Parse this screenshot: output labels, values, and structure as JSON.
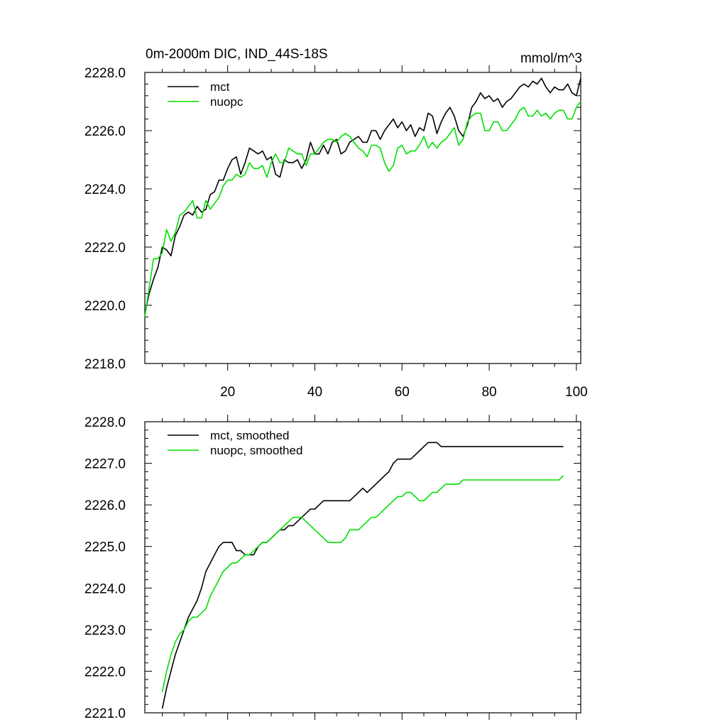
{
  "colors": {
    "mct": "#000000",
    "nuopc": "#00e000"
  },
  "chart_data": [
    {
      "type": "line",
      "title": "0m-2000m DIC, IND_44S-18S",
      "units": "mmol/m^3",
      "xlim": [
        1,
        101
      ],
      "ylim": [
        2218.0,
        2228.0
      ],
      "x_ticks": [
        20,
        40,
        60,
        80,
        100
      ],
      "x_tick_labels": [
        "20",
        "40",
        "60",
        "80",
        "100"
      ],
      "y_ticks": [
        2218.0,
        2220.0,
        2222.0,
        2224.0,
        2226.0,
        2228.0
      ],
      "y_tick_labels": [
        "2218.0",
        "2220.0",
        "2222.0",
        "2224.0",
        "2226.0",
        "2228.0"
      ],
      "legend_position": "top-left",
      "x": [
        1,
        2,
        3,
        4,
        5,
        6,
        7,
        8,
        9,
        10,
        11,
        12,
        13,
        14,
        15,
        16,
        17,
        18,
        19,
        20,
        21,
        22,
        23,
        24,
        25,
        26,
        27,
        28,
        29,
        30,
        31,
        32,
        33,
        34,
        35,
        36,
        37,
        38,
        39,
        40,
        41,
        42,
        43,
        44,
        45,
        46,
        47,
        48,
        49,
        50,
        51,
        52,
        53,
        54,
        55,
        56,
        57,
        58,
        59,
        60,
        61,
        62,
        63,
        64,
        65,
        66,
        67,
        68,
        69,
        70,
        71,
        72,
        73,
        74,
        75,
        76,
        77,
        78,
        79,
        80,
        81,
        82,
        83,
        84,
        85,
        86,
        87,
        88,
        89,
        90,
        91,
        92,
        93,
        94,
        95,
        96,
        97,
        98,
        99,
        100,
        101
      ],
      "series": [
        {
          "name": "mct",
          "values": [
            2219.7,
            2220.4,
            2220.9,
            2221.3,
            2222.0,
            2221.9,
            2221.7,
            2222.4,
            2222.7,
            2223.1,
            2223.2,
            2223.1,
            2223.4,
            2223.2,
            2223.3,
            2223.8,
            2223.9,
            2224.3,
            2224.3,
            2224.7,
            2225.0,
            2225.1,
            2224.5,
            2224.9,
            2225.4,
            2225.3,
            2225.2,
            2225.3,
            2225.0,
            2225.1,
            2224.5,
            2224.4,
            2225.0,
            2224.9,
            2224.9,
            2225.0,
            2224.7,
            2225.0,
            2225.6,
            2225.2,
            2225.2,
            2225.5,
            2225.2,
            2225.6,
            2225.7,
            2225.2,
            2225.3,
            2225.6,
            2225.7,
            2225.8,
            2225.6,
            2225.6,
            2226.0,
            2226.0,
            2225.7,
            2226.0,
            2226.2,
            2226.4,
            2226.1,
            2226.3,
            2226.0,
            2226.2,
            2225.8,
            2226.1,
            2226.0,
            2226.6,
            2226.5,
            2225.9,
            2226.3,
            2226.6,
            2226.8,
            2226.5,
            2226.0,
            2225.8,
            2226.2,
            2226.8,
            2227.0,
            2227.3,
            2227.1,
            2227.2,
            2227.0,
            2227.1,
            2226.8,
            2227.0,
            2227.1,
            2227.3,
            2227.5,
            2227.6,
            2227.5,
            2227.7,
            2227.6,
            2227.8,
            2227.5,
            2227.3,
            2227.5,
            2227.4,
            2227.4,
            2227.6,
            2227.3,
            2227.2,
            2227.8
          ]
        },
        {
          "name": "nuopc",
          "values": [
            2219.6,
            2220.6,
            2221.6,
            2221.6,
            2221.8,
            2222.6,
            2222.2,
            2222.5,
            2223.1,
            2223.2,
            2223.4,
            2223.6,
            2223.0,
            2223.0,
            2223.6,
            2223.3,
            2223.5,
            2223.7,
            2224.1,
            2224.3,
            2224.3,
            2224.5,
            2224.4,
            2224.5,
            2224.9,
            2224.7,
            2224.7,
            2224.8,
            2224.4,
            2224.9,
            2225.2,
            2224.9,
            2224.9,
            2225.4,
            2225.3,
            2225.2,
            2225.2,
            2224.8,
            2225.2,
            2225.2,
            2225.4,
            2225.6,
            2225.7,
            2225.7,
            2225.6,
            2225.8,
            2225.9,
            2225.8,
            2225.6,
            2225.4,
            2225.3,
            2225.1,
            2225.5,
            2225.5,
            2225.4,
            2224.9,
            2224.6,
            2224.8,
            2225.4,
            2225.5,
            2225.2,
            2225.3,
            2225.3,
            2225.5,
            2225.8,
            2225.4,
            2225.6,
            2225.4,
            2225.6,
            2225.7,
            2225.9,
            2226.1,
            2225.5,
            2225.7,
            2226.3,
            2226.5,
            2226.6,
            2226.6,
            2226.0,
            2226.0,
            2226.3,
            2226.3,
            2226.0,
            2226.0,
            2226.2,
            2226.4,
            2226.7,
            2226.8,
            2226.5,
            2226.5,
            2226.7,
            2226.5,
            2226.6,
            2226.4,
            2226.6,
            2226.7,
            2226.7,
            2226.4,
            2226.4,
            2226.8,
            2227.0
          ]
        }
      ]
    },
    {
      "type": "line",
      "xlim": [
        1,
        101
      ],
      "ylim": [
        2221.0,
        2228.0
      ],
      "x_ticks": [
        20,
        40,
        60,
        80,
        100
      ],
      "y_ticks": [
        2221.0,
        2222.0,
        2223.0,
        2224.0,
        2225.0,
        2226.0,
        2227.0,
        2228.0
      ],
      "y_tick_labels": [
        "2221.0",
        "2222.0",
        "2223.0",
        "2224.0",
        "2225.0",
        "2226.0",
        "2227.0",
        "2228.0"
      ],
      "legend_position": "top-left",
      "x": [
        5,
        6,
        7,
        8,
        9,
        10,
        11,
        12,
        13,
        14,
        15,
        16,
        17,
        18,
        19,
        20,
        21,
        22,
        23,
        24,
        25,
        26,
        27,
        28,
        29,
        30,
        31,
        32,
        33,
        34,
        35,
        36,
        37,
        38,
        39,
        40,
        41,
        42,
        43,
        44,
        45,
        46,
        47,
        48,
        49,
        50,
        51,
        52,
        53,
        54,
        55,
        56,
        57,
        58,
        59,
        60,
        61,
        62,
        63,
        64,
        65,
        66,
        67,
        68,
        69,
        70,
        71,
        72,
        73,
        74,
        75,
        76,
        77,
        78,
        79,
        80,
        81,
        82,
        83,
        84,
        85,
        86,
        87,
        88,
        89,
        90,
        91,
        92,
        93,
        94,
        95,
        96,
        97
      ],
      "series": [
        {
          "name": "mct, smoothed",
          "values": [
            2221.1,
            2221.6,
            2222.0,
            2222.4,
            2222.7,
            2223.0,
            2223.3,
            2223.5,
            2223.7,
            2224.0,
            2224.4,
            2224.6,
            2224.8,
            2225.0,
            2225.1,
            2225.1,
            2225.1,
            2224.9,
            2224.9,
            2224.8,
            2224.8,
            2224.8,
            2225.0,
            2225.1,
            2225.1,
            2225.2,
            2225.3,
            2225.4,
            2225.4,
            2225.5,
            2225.5,
            2225.6,
            2225.7,
            2225.8,
            2225.9,
            2225.9,
            2226.0,
            2226.1,
            2226.1,
            2226.1,
            2226.1,
            2226.1,
            2226.1,
            2226.1,
            2226.2,
            2226.3,
            2226.4,
            2226.3,
            2226.4,
            2226.5,
            2226.6,
            2226.7,
            2226.8,
            2227.0,
            2227.1,
            2227.1,
            2227.1,
            2227.1,
            2227.2,
            2227.3,
            2227.4,
            2227.5,
            2227.5,
            2227.5,
            2227.4,
            2227.4,
            2227.4,
            2227.4,
            2227.4,
            2227.4,
            2227.4,
            2227.4,
            2227.4,
            2227.4,
            2227.4,
            2227.4,
            2227.4,
            2227.4,
            2227.4,
            2227.4,
            2227.4,
            2227.4,
            2227.4,
            2227.4,
            2227.4,
            2227.4,
            2227.4,
            2227.4,
            2227.4,
            2227.4,
            2227.4,
            2227.4,
            2227.4
          ]
        },
        {
          "name": "nuopc, smoothed",
          "values": [
            2221.5,
            2222.0,
            2222.4,
            2222.7,
            2222.9,
            2223.0,
            2223.2,
            2223.3,
            2223.3,
            2223.4,
            2223.5,
            2223.8,
            2224.0,
            2224.2,
            2224.4,
            2224.5,
            2224.6,
            2224.6,
            2224.7,
            2224.8,
            2224.8,
            2224.9,
            2225.0,
            2225.1,
            2225.1,
            2225.2,
            2225.3,
            2225.4,
            2225.5,
            2225.6,
            2225.7,
            2225.7,
            2225.7,
            2225.6,
            2225.5,
            2225.4,
            2225.3,
            2225.2,
            2225.1,
            2225.1,
            2225.1,
            2225.1,
            2225.2,
            2225.4,
            2225.4,
            2225.4,
            2225.5,
            2225.6,
            2225.7,
            2225.7,
            2225.8,
            2225.9,
            2226.0,
            2226.1,
            2226.2,
            2226.2,
            2226.3,
            2226.3,
            2226.2,
            2226.1,
            2226.1,
            2226.2,
            2226.3,
            2226.3,
            2226.4,
            2226.5,
            2226.5,
            2226.5,
            2226.5,
            2226.6,
            2226.6,
            2226.6,
            2226.6,
            2226.6,
            2226.6,
            2226.6,
            2226.6,
            2226.6,
            2226.6,
            2226.6,
            2226.6,
            2226.6,
            2226.6,
            2226.6,
            2226.6,
            2226.6,
            2226.6,
            2226.6,
            2226.6,
            2226.6,
            2226.6,
            2226.6,
            2226.7
          ]
        }
      ]
    }
  ]
}
